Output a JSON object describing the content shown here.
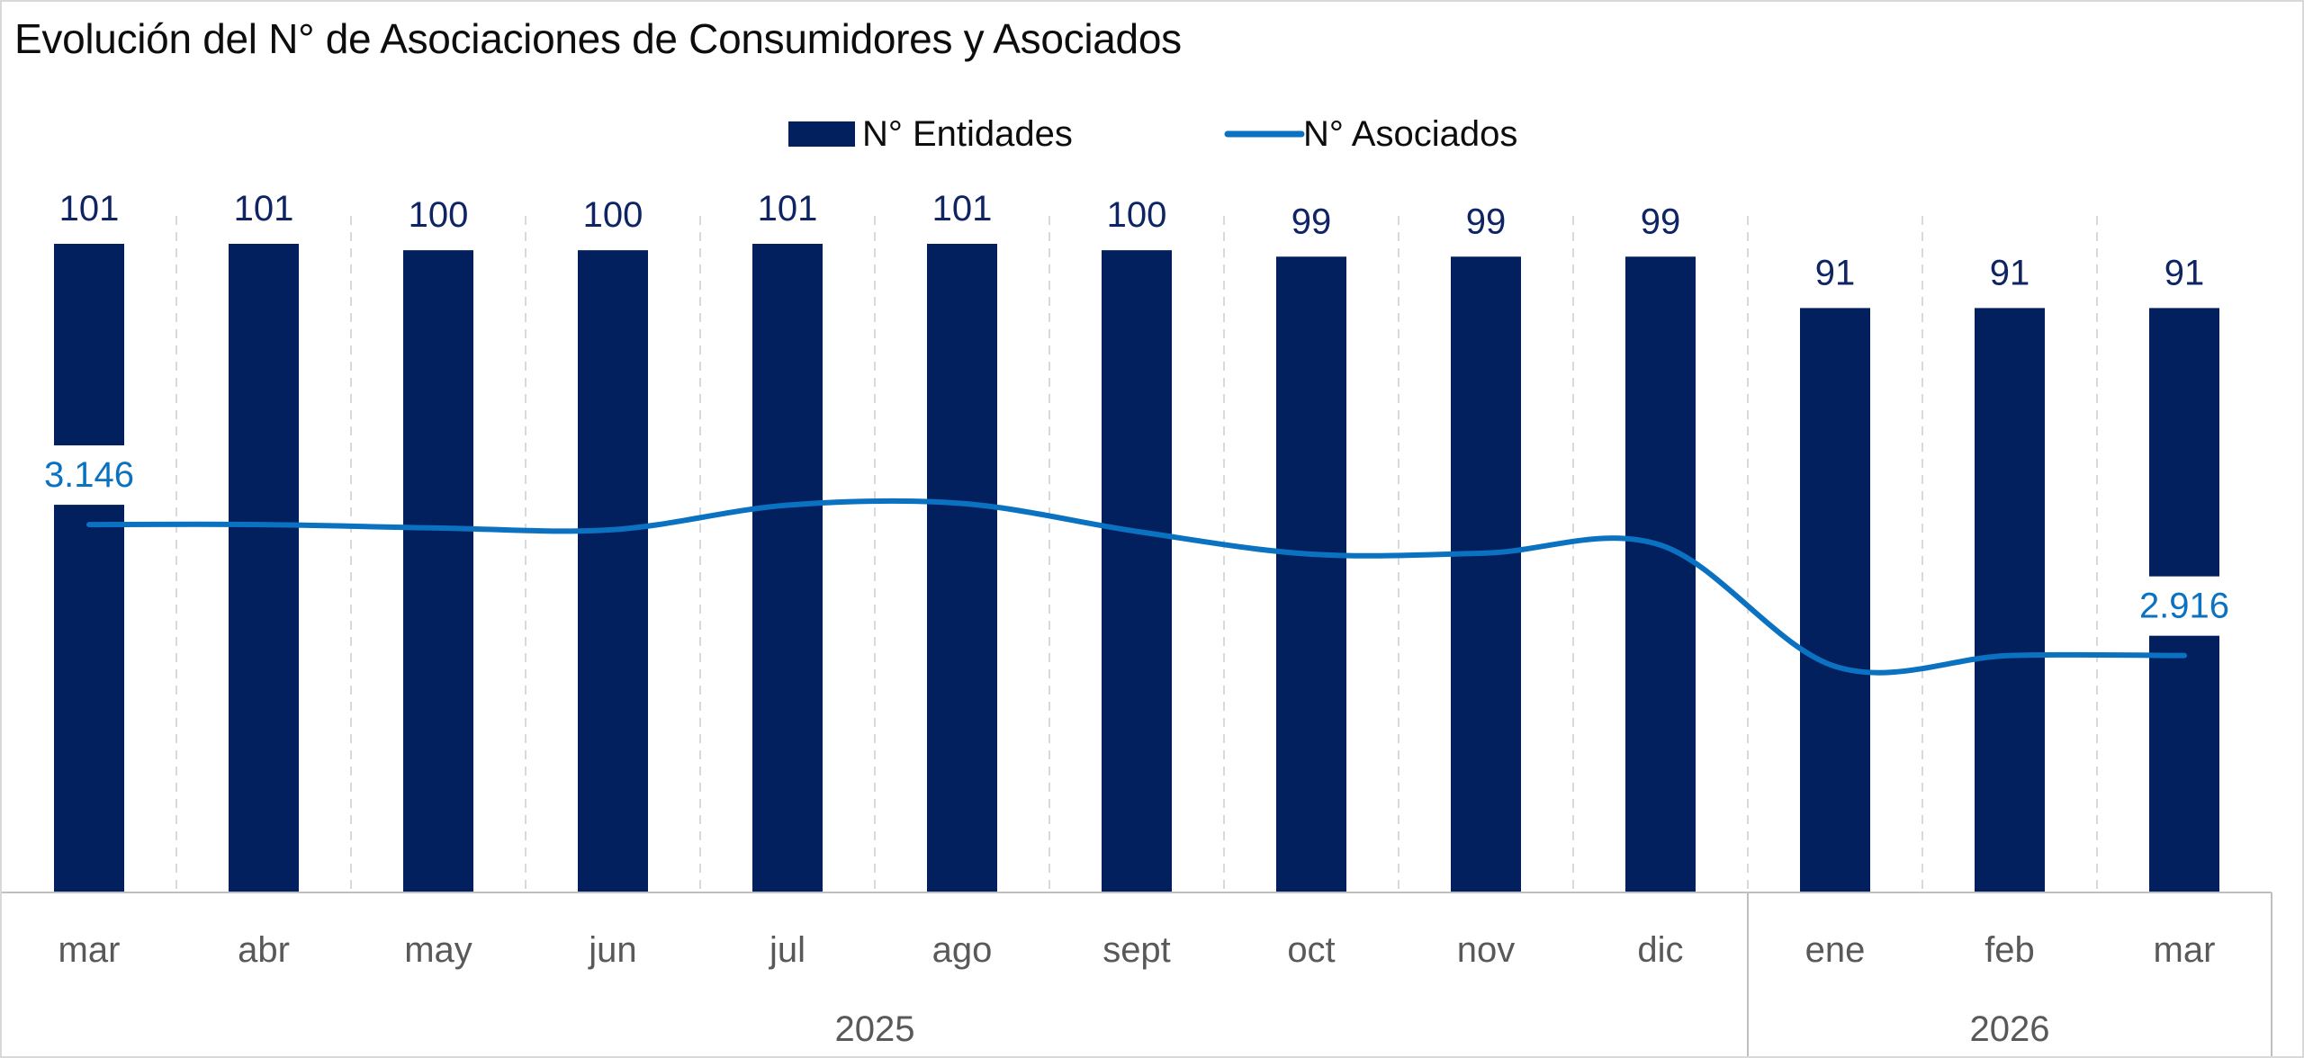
{
  "chart_data": {
    "type": "bar",
    "title": "Evolución del N° de Asociaciones de Consumidores y Asociados",
    "categories": [
      "mar",
      "abr",
      "may",
      "jun",
      "jul",
      "ago",
      "sept",
      "oct",
      "nov",
      "dic",
      "ene",
      "feb",
      "mar"
    ],
    "groups": [
      {
        "label": "2025",
        "count": 10
      },
      {
        "label": "2026",
        "count": 3
      }
    ],
    "series": [
      {
        "name": "N° Entidades",
        "type": "bar",
        "color": "#021f5e",
        "values": [
          101,
          101,
          100,
          100,
          101,
          101,
          100,
          99,
          99,
          99,
          91,
          91,
          91
        ],
        "data_labels": [
          "101",
          "101",
          "100",
          "100",
          "101",
          "101",
          "100",
          "99",
          "99",
          "99",
          "91",
          "91",
          "91"
        ],
        "ylim": [
          0,
          101
        ]
      },
      {
        "name": "N° Asociados",
        "type": "line",
        "smooth": true,
        "color": "#0a72c1",
        "values": [
          3146,
          3146,
          3140,
          3137,
          3180,
          3183,
          3134,
          3094,
          3096,
          3110,
          2897,
          2916,
          2916
        ],
        "data_labels": {
          "0": "3.146",
          "12": "2.916"
        },
        "ylim": [
          2500,
          3590
        ]
      }
    ],
    "legend": "top-center",
    "xlabel": "",
    "ylabel": "",
    "grid": "vertical-dashed"
  }
}
